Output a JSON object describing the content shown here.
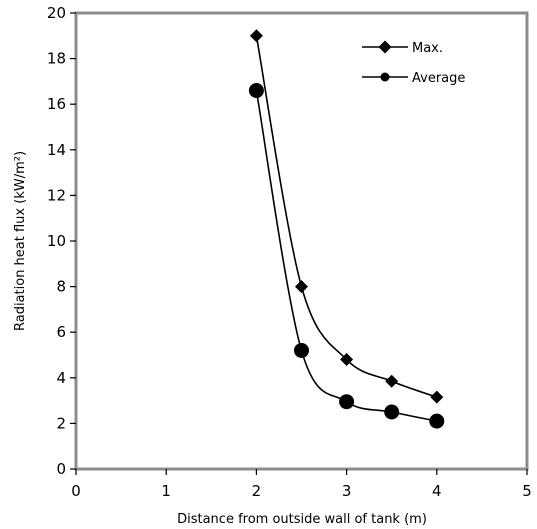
{
  "chart_data": {
    "type": "line",
    "title": "",
    "xlabel": "Distance from outside wall of tank (m)",
    "ylabel": "Radiation heat flux (kW/m²)",
    "xlim": [
      0,
      5
    ],
    "ylim": [
      0,
      20
    ],
    "xticks": [
      "0",
      "1",
      "2",
      "3",
      "4",
      "5"
    ],
    "yticks": [
      "0",
      "2",
      "4",
      "6",
      "8",
      "10",
      "12",
      "14",
      "16",
      "18",
      "20"
    ],
    "grid": false,
    "legend_position": "top-right",
    "series": [
      {
        "name": "Max.",
        "marker": "diamond",
        "color": "#000000",
        "x": [
          2,
          2.5,
          3,
          3.5,
          4
        ],
        "y": [
          19.0,
          8.0,
          4.8,
          3.85,
          3.15
        ]
      },
      {
        "name": "Average",
        "marker": "circle",
        "color": "#000000",
        "x": [
          2,
          2.5,
          3,
          3.5,
          4
        ],
        "y": [
          16.6,
          5.2,
          2.95,
          2.5,
          2.1
        ]
      }
    ]
  }
}
